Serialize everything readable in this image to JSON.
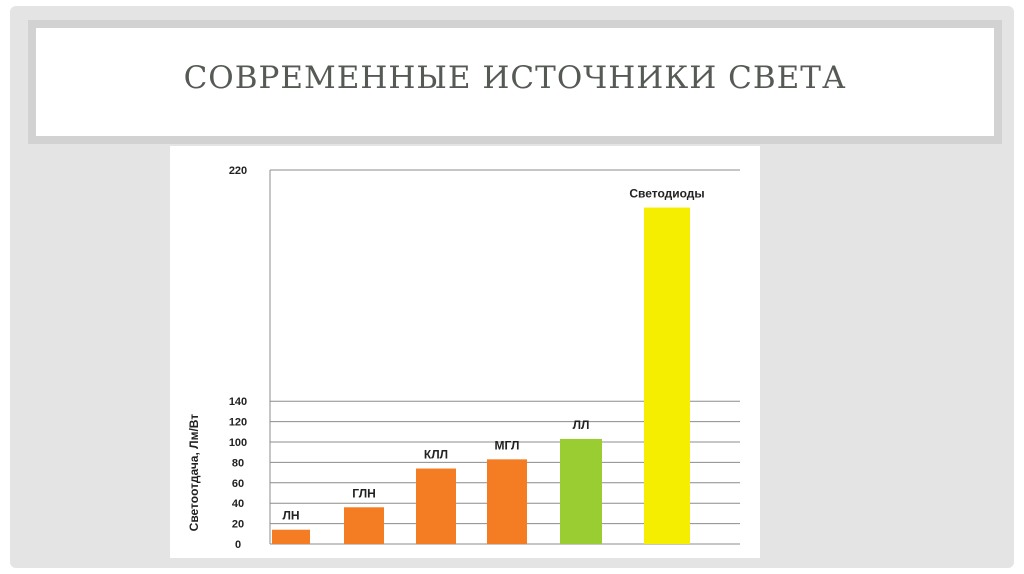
{
  "slide": {
    "title": "СОВРЕМЕННЫЕ ИСТОЧНИКИ СВЕТА"
  },
  "chart_data": {
    "type": "bar",
    "categories": [
      "ЛН",
      "ГЛН",
      "КЛЛ",
      "МГЛ",
      "ЛЛ",
      "Светодиоды"
    ],
    "values": [
      14,
      36,
      74,
      83,
      103,
      207
    ],
    "colors": [
      "#f47d24",
      "#f47d24",
      "#f47d24",
      "#f47d24",
      "#9acd32",
      "#f6ee00"
    ],
    "ylabel": "Светоотдача, Лм/Вт",
    "xlabel": "",
    "title": "",
    "yticks": [
      0,
      20,
      40,
      60,
      80,
      100,
      120,
      140,
      220
    ],
    "ylim": [
      0,
      220
    ],
    "grid": true,
    "legend": "none"
  }
}
